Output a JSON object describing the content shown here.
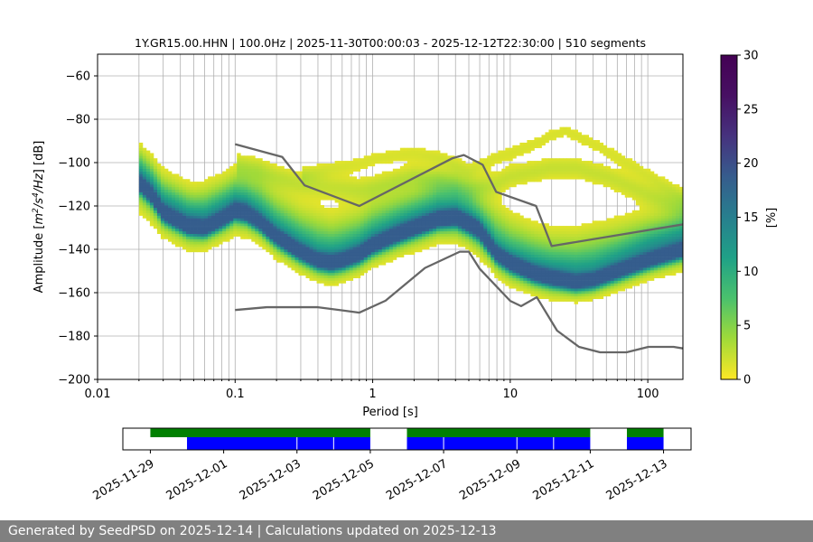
{
  "chart_data": {
    "type": "heatmap",
    "title": "1Y.GR15.00.HHN | 100.0Hz | 2025-11-30T00:00:03 - 2025-12-12T22:30:00 | 510 segments",
    "xlabel": "Period [s]",
    "ylabel_parts": [
      "Amplitude [",
      "m",
      "2",
      "/",
      "s",
      "4",
      "/Hz",
      "] [dB]"
    ],
    "x_scale": "log",
    "xlim": [
      0.01,
      180
    ],
    "ylim": [
      -200,
      -50
    ],
    "x_ticks": [
      {
        "value": 0.01,
        "label": "0.01"
      },
      {
        "value": 0.1,
        "label": "0.1"
      },
      {
        "value": 1,
        "label": "1"
      },
      {
        "value": 10,
        "label": "10"
      },
      {
        "value": 100,
        "label": "100"
      }
    ],
    "y_ticks": [
      {
        "value": -60,
        "label": "−60"
      },
      {
        "value": -80,
        "label": "−80"
      },
      {
        "value": -100,
        "label": "−100"
      },
      {
        "value": -120,
        "label": "−120"
      },
      {
        "value": -140,
        "label": "−140"
      },
      {
        "value": -160,
        "label": "−160"
      },
      {
        "value": -180,
        "label": "−180"
      },
      {
        "value": -200,
        "label": "−200"
      }
    ],
    "grid": true,
    "colormap": "viridis_r",
    "colorbar": {
      "label": "[%]",
      "range": [
        0,
        30
      ],
      "ticks": [
        {
          "value": 0,
          "label": "0"
        },
        {
          "value": 5,
          "label": "5"
        },
        {
          "value": 10,
          "label": "10"
        },
        {
          "value": 15,
          "label": "15"
        },
        {
          "value": 20,
          "label": "20"
        },
        {
          "value": 25,
          "label": "25"
        },
        {
          "value": 30,
          "label": "30"
        }
      ]
    },
    "nhnm": [
      [
        0.1,
        -91.5
      ],
      [
        0.22,
        -97.4
      ],
      [
        0.32,
        -110.5
      ],
      [
        0.8,
        -120
      ],
      [
        3.8,
        -98
      ],
      [
        4.6,
        -96.5
      ],
      [
        6.3,
        -101
      ],
      [
        7.9,
        -113.5
      ],
      [
        15.4,
        -120
      ],
      [
        20,
        -138.5
      ],
      [
        180,
        -128.5
      ]
    ],
    "nlnm": [
      [
        0.1,
        -168
      ],
      [
        0.17,
        -166.7
      ],
      [
        0.4,
        -166.7
      ],
      [
        0.8,
        -169.2
      ],
      [
        1.24,
        -163.7
      ],
      [
        2.4,
        -148.6
      ],
      [
        4.3,
        -141.1
      ],
      [
        5,
        -141.1
      ],
      [
        6,
        -149
      ],
      [
        10,
        -163.8
      ],
      [
        12,
        -166.2
      ],
      [
        15.6,
        -162.1
      ],
      [
        21.9,
        -177.5
      ],
      [
        31.6,
        -185
      ],
      [
        45,
        -187.5
      ],
      [
        70,
        -187.5
      ],
      [
        101,
        -185
      ],
      [
        154,
        -185
      ],
      [
        180,
        -185.7
      ]
    ],
    "density_bands": [
      {
        "weight": 1.0,
        "width": 2.5,
        "points": [
          [
            0.02,
            -110
          ],
          [
            0.025,
            -116
          ],
          [
            0.03,
            -124
          ],
          [
            0.045,
            -130
          ],
          [
            0.06,
            -131
          ],
          [
            0.08,
            -127
          ],
          [
            0.1,
            -123
          ],
          [
            0.12,
            -124
          ],
          [
            0.15,
            -128
          ],
          [
            0.2,
            -135
          ],
          [
            0.3,
            -142
          ],
          [
            0.4,
            -146
          ],
          [
            0.5,
            -147
          ],
          [
            0.6,
            -146
          ],
          [
            0.8,
            -143
          ],
          [
            1,
            -139
          ],
          [
            1.5,
            -134
          ],
          [
            2,
            -131
          ],
          [
            3,
            -127
          ],
          [
            4,
            -126
          ],
          [
            5,
            -129
          ],
          [
            6,
            -132
          ],
          [
            7,
            -138
          ],
          [
            8,
            -143
          ],
          [
            10,
            -147
          ],
          [
            15,
            -152
          ],
          [
            20,
            -154
          ],
          [
            30,
            -156
          ],
          [
            40,
            -155
          ],
          [
            60,
            -151
          ],
          [
            100,
            -146
          ],
          [
            180,
            -141
          ]
        ]
      },
      {
        "weight": 0.45,
        "width": 6,
        "points": [
          [
            0.02,
            -106
          ],
          [
            0.025,
            -112
          ],
          [
            0.03,
            -120
          ],
          [
            0.045,
            -126
          ],
          [
            0.06,
            -127
          ],
          [
            0.08,
            -123
          ],
          [
            0.1,
            -120
          ],
          [
            0.12,
            -121
          ],
          [
            0.15,
            -125
          ],
          [
            0.2,
            -132
          ],
          [
            0.3,
            -139
          ],
          [
            0.4,
            -143
          ],
          [
            0.5,
            -144
          ],
          [
            0.6,
            -143
          ],
          [
            0.8,
            -140
          ],
          [
            1,
            -136
          ],
          [
            1.5,
            -131
          ],
          [
            2,
            -128
          ],
          [
            3,
            -124
          ],
          [
            4,
            -124
          ],
          [
            5,
            -127
          ],
          [
            6,
            -131
          ],
          [
            7,
            -136
          ],
          [
            8,
            -141
          ],
          [
            10,
            -145
          ],
          [
            15,
            -149
          ],
          [
            20,
            -151
          ],
          [
            30,
            -152
          ],
          [
            40,
            -151
          ],
          [
            60,
            -147
          ],
          [
            100,
            -141
          ],
          [
            180,
            -136
          ]
        ]
      },
      {
        "weight": 0.25,
        "width": 9,
        "points": [
          [
            0.02,
            -108
          ],
          [
            0.03,
            -119
          ],
          [
            0.05,
            -126
          ],
          [
            0.08,
            -121
          ],
          [
            0.1,
            -117
          ],
          [
            0.15,
            -119
          ],
          [
            0.2,
            -126
          ],
          [
            0.3,
            -133
          ],
          [
            0.5,
            -138
          ],
          [
            0.8,
            -134
          ],
          [
            1,
            -130
          ],
          [
            2,
            -124
          ],
          [
            3,
            -120
          ],
          [
            4,
            -120
          ],
          [
            5,
            -123
          ],
          [
            7,
            -130
          ],
          [
            10,
            -138
          ],
          [
            15,
            -143
          ],
          [
            20,
            -145
          ],
          [
            30,
            -145
          ],
          [
            50,
            -142
          ],
          [
            100,
            -137
          ],
          [
            180,
            -134
          ]
        ]
      },
      {
        "weight": 0.12,
        "width": 4,
        "points": [
          [
            0.1,
            -102
          ],
          [
            0.15,
            -104
          ],
          [
            0.2,
            -107
          ],
          [
            0.3,
            -110
          ],
          [
            0.5,
            -112
          ],
          [
            0.8,
            -113
          ],
          [
            1,
            -112
          ],
          [
            1.5,
            -109
          ],
          [
            2,
            -107
          ],
          [
            3,
            -109
          ],
          [
            5,
            -113
          ],
          [
            8,
            -110
          ],
          [
            10,
            -107
          ],
          [
            20,
            -103
          ],
          [
            30,
            -103
          ],
          [
            50,
            -107
          ],
          [
            100,
            -115
          ],
          [
            180,
            -121
          ]
        ]
      },
      {
        "weight": 0.08,
        "width": 3,
        "points": [
          [
            0.3,
            -106
          ],
          [
            0.5,
            -103
          ],
          [
            0.8,
            -101
          ],
          [
            1,
            -99
          ],
          [
            1.5,
            -97
          ],
          [
            2,
            -96
          ],
          [
            3,
            -98
          ],
          [
            5,
            -104
          ],
          [
            8,
            -98
          ],
          [
            10,
            -96
          ],
          [
            15,
            -92
          ],
          [
            20,
            -88
          ],
          [
            25,
            -86
          ],
          [
            30,
            -88
          ],
          [
            50,
            -95
          ],
          [
            100,
            -106
          ],
          [
            180,
            -116
          ]
        ]
      }
    ],
    "availability": {
      "dates": [
        {
          "value": "2025-11-29",
          "label": "2025-11-29"
        },
        {
          "value": "2025-12-01",
          "label": "2025-12-01"
        },
        {
          "value": "2025-12-03",
          "label": "2025-12-03"
        },
        {
          "value": "2025-12-05",
          "label": "2025-12-05"
        },
        {
          "value": "2025-12-07",
          "label": "2025-12-07"
        },
        {
          "value": "2025-12-09",
          "label": "2025-12-09"
        },
        {
          "value": "2025-12-11",
          "label": "2025-12-11"
        },
        {
          "value": "2025-12-13",
          "label": "2025-12-13"
        }
      ],
      "range": [
        "2025-11-28T06:00",
        "2025-12-13T18:00"
      ],
      "green_segments": [
        [
          "2025-11-29T00:00",
          "2025-12-05T00:00"
        ],
        [
          "2025-12-06T00:00",
          "2025-12-11T00:00"
        ],
        [
          "2025-12-12T00:00",
          "2025-12-13T00:00"
        ]
      ],
      "blue_segments": [
        [
          "2025-11-30T00:00",
          "2025-12-03T00:00"
        ],
        [
          "2025-12-03T00:00",
          "2025-12-04T00:00"
        ],
        [
          "2025-12-04T00:00",
          "2025-12-05T00:00"
        ],
        [
          "2025-12-06T00:00",
          "2025-12-07T00:00"
        ],
        [
          "2025-12-07T00:00",
          "2025-12-09T00:00"
        ],
        [
          "2025-12-09T00:00",
          "2025-12-10T00:00"
        ],
        [
          "2025-12-10T00:00",
          "2025-12-11T00:00"
        ],
        [
          "2025-12-12T00:00",
          "2025-12-13T00:00"
        ]
      ],
      "colors": {
        "green": "#008000",
        "blue": "#0000ff"
      }
    }
  },
  "footer": {
    "text": "Generated by SeedPSD on 2025-12-14 | Calculations updated on 2025-12-13"
  }
}
